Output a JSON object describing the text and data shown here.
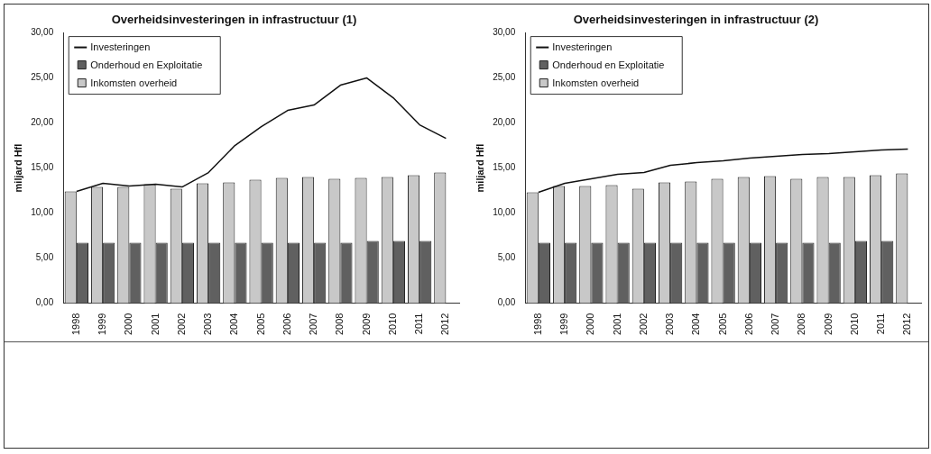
{
  "chart_data": [
    {
      "type": "bar",
      "title": "Overheidsinvesteringen in infrastructuur (1)",
      "ylabel": "miljard Hfl",
      "categories": [
        "1998",
        "1999",
        "2000",
        "2001",
        "2002",
        "2003",
        "2004",
        "2005",
        "2006",
        "2007",
        "2008",
        "2009",
        "2010",
        "2011",
        "2012"
      ],
      "series": [
        {
          "name": "Investeringen",
          "type": "line",
          "color": "#111111",
          "values": [
            12.4,
            13.3,
            13.0,
            13.2,
            12.9,
            14.5,
            17.5,
            19.6,
            21.4,
            22.0,
            24.2,
            25.0,
            22.8,
            19.8,
            18.3
          ]
        },
        {
          "name": "Onderhoud en Exploitatie",
          "color": "#606060",
          "values": [
            6.7,
            6.7,
            6.7,
            6.7,
            6.7,
            6.7,
            6.7,
            6.7,
            6.7,
            6.7,
            6.7,
            6.9,
            6.9,
            6.9,
            null
          ]
        },
        {
          "name": "Inkomsten overheid",
          "color": "#c8c8c8",
          "values": [
            12.4,
            12.9,
            12.9,
            13.2,
            12.7,
            13.3,
            13.4,
            13.7,
            13.9,
            14.0,
            13.8,
            13.9,
            14.0,
            14.2,
            14.5
          ]
        }
      ],
      "ylim": [
        0,
        30
      ],
      "yticks": [
        {
          "value": 0,
          "label": "0,00"
        },
        {
          "value": 5,
          "label": "5,00"
        },
        {
          "value": 10,
          "label": "10,00"
        },
        {
          "value": 15,
          "label": "15,00"
        },
        {
          "value": 20,
          "label": "20,00"
        },
        {
          "value": 25,
          "label": "25,00"
        },
        {
          "value": 30,
          "label": "30,00"
        }
      ],
      "legend": "top left",
      "marker": "none"
    },
    {
      "type": "bar",
      "title": "Overheidsinvesteringen in infrastructuur (2)",
      "ylabel": "miljard Hfl",
      "categories": [
        "1998",
        "1999",
        "2000",
        "2001",
        "2002",
        "2003",
        "2004",
        "2005",
        "2006",
        "2007",
        "2008",
        "2009",
        "2010",
        "2011",
        "2012"
      ],
      "series": [
        {
          "name": "Investeringen",
          "type": "line",
          "color": "#111111",
          "values": [
            12.3,
            13.3,
            13.8,
            14.3,
            14.5,
            15.3,
            15.6,
            15.8,
            16.1,
            16.3,
            16.5,
            16.6,
            16.8,
            17.0,
            17.1
          ]
        },
        {
          "name": "Onderhoud en Exploitatie",
          "color": "#606060",
          "values": [
            6.7,
            6.7,
            6.7,
            6.7,
            6.7,
            6.7,
            6.7,
            6.7,
            6.7,
            6.7,
            6.7,
            6.7,
            6.9,
            6.9,
            null
          ]
        },
        {
          "name": "Inkomsten overheid",
          "color": "#c8c8c8",
          "values": [
            12.3,
            13.0,
            13.0,
            13.1,
            12.7,
            13.4,
            13.5,
            13.8,
            14.0,
            14.1,
            13.8,
            14.0,
            14.0,
            14.2,
            14.4
          ]
        }
      ],
      "ylim": [
        0,
        30
      ],
      "yticks": [
        {
          "value": 0,
          "label": "0,00"
        },
        {
          "value": 5,
          "label": "5,00"
        },
        {
          "value": 10,
          "label": "10,00"
        },
        {
          "value": 15,
          "label": "15,00"
        },
        {
          "value": 20,
          "label": "20,00"
        },
        {
          "value": 25,
          "label": "25,00"
        },
        {
          "value": 30,
          "label": "30,00"
        }
      ],
      "legend": "top left",
      "marker": "none"
    }
  ]
}
